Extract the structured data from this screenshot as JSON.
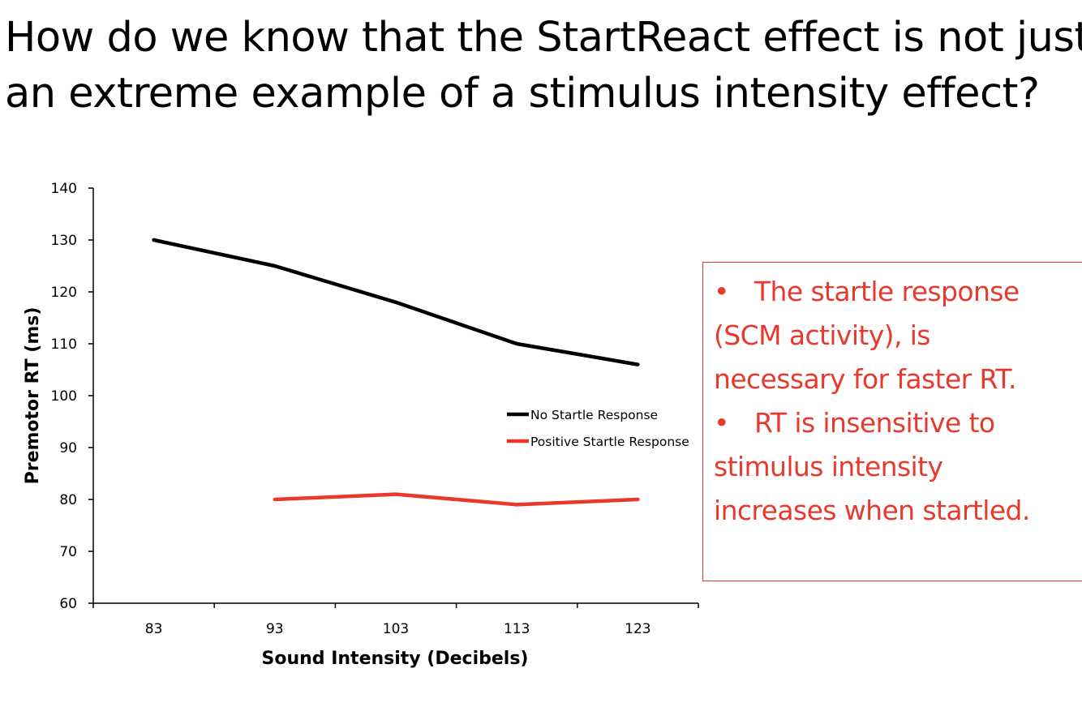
{
  "slide": {
    "title_lines": [
      "How do we know that the StartReact effect is not just",
      "an extreme example of a stimulus intensity effect?"
    ]
  },
  "notes": {
    "bullet_char": "•",
    "items": [
      {
        "lines": [
          "The startle response",
          "(SCM activity), is",
          "necessary for faster RT."
        ]
      },
      {
        "lines": [
          "RT is insensitive to",
          "stimulus intensity",
          "increases when startled."
        ]
      }
    ]
  },
  "colors": {
    "no_startle": "#000000",
    "positive_startle": "#e8392c",
    "note_text": "#e8392c"
  },
  "chart_data": {
    "type": "line",
    "title": "",
    "xlabel": "Sound Intensity (Decibels)",
    "ylabel": "Premotor RT (ms)",
    "categories": [
      "83",
      "93",
      "103",
      "113",
      "123"
    ],
    "ylim": [
      60,
      140
    ],
    "ytick_step": 10,
    "grid": false,
    "legend_position": "center-right",
    "series": [
      {
        "name": "No Startle Response",
        "values": [
          130,
          125,
          118,
          110,
          106
        ]
      },
      {
        "name": "Positive Startle Response",
        "values": [
          null,
          80,
          81,
          79,
          80
        ]
      }
    ]
  }
}
